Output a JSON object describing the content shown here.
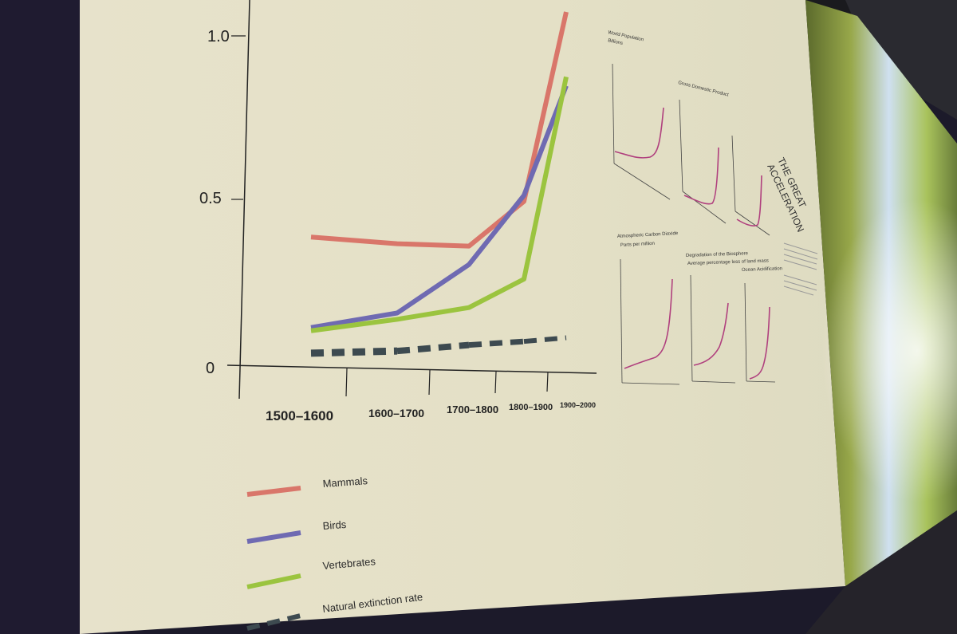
{
  "chart_data": {
    "type": "line",
    "x_tick_labels": [
      "1500–1600",
      "1600–1700",
      "1700–1800",
      "1800–1900",
      "1900–2000"
    ],
    "y_tick_labels": [
      "1.0",
      "0.5",
      "0"
    ],
    "ylim": [
      0,
      1.0
    ],
    "series": [
      {
        "name": "Mammals",
        "color": "#d9766a",
        "values": [
          0.34,
          0.32,
          0.31,
          0.46,
          1.1
        ]
      },
      {
        "name": "Birds",
        "color": "#6f6ab2",
        "values": [
          0.06,
          0.1,
          0.25,
          0.48,
          0.85
        ]
      },
      {
        "name": "Vertebrates",
        "color": "#9bc43f",
        "values": [
          0.05,
          0.08,
          0.11,
          0.2,
          0.88
        ]
      },
      {
        "name": "Natural extinction rate",
        "color": "#3d4a50",
        "dashed": true,
        "values": [
          0.03,
          0.03,
          0.04,
          0.045,
          0.05
        ]
      }
    ],
    "legend_placement": "bottom-left"
  },
  "side_panel": {
    "title_line1": "THE GREAT",
    "title_line2": "ACCELERATION",
    "mini_charts": [
      {
        "title": "World Population",
        "subtitle": "Billions"
      },
      {
        "title": "Gross Domestic Product",
        "subtitle": ""
      },
      {
        "title": "",
        "subtitle": ""
      },
      {
        "title": "Atmospheric Carbon Dioxide",
        "subtitle": "Parts per million"
      },
      {
        "title": "Degradation of the Biosphere",
        "subtitle": "Average percentage loss of land mass"
      },
      {
        "title": "Ocean Acidification",
        "subtitle": ""
      }
    ]
  },
  "colors": {
    "wall": "#e6e2cc",
    "dark_edge": "#1c1a2a",
    "mini_line": "#b0407e"
  }
}
